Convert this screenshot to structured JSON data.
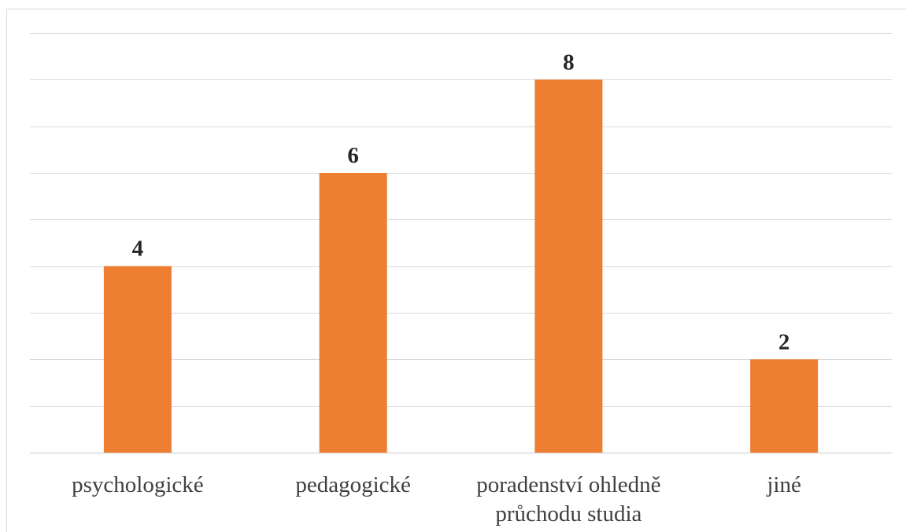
{
  "chart_data": {
    "type": "bar",
    "categories": [
      [
        "psychologické"
      ],
      [
        "pedagogické"
      ],
      [
        "poradenství ohledně",
        "průchodu studia"
      ],
      [
        "jiné"
      ]
    ],
    "values": [
      4,
      6,
      8,
      2
    ],
    "ylim": [
      0,
      9
    ],
    "y_step": 1,
    "grid": true,
    "y_axis_labels_shown": false,
    "data_labels_shown": true,
    "bar_color": "#ed7d31",
    "grid_color": "#d9d9d9"
  }
}
